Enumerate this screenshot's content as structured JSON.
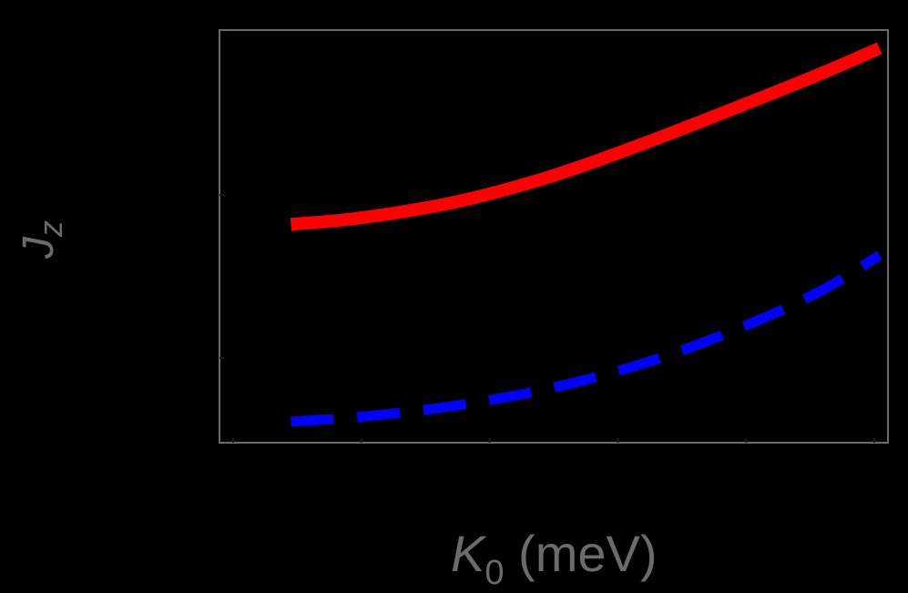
{
  "chart_data": {
    "type": "line",
    "title": "",
    "xlabel": "K0 (meV)",
    "ylabel": "Jz",
    "xlabel_parts": {
      "main": "K",
      "sub": "0",
      "rest": " (meV)"
    },
    "ylabel_parts": {
      "main": "J",
      "sub": "z"
    },
    "x_ticks_count": 6,
    "x_tick_labels": [],
    "y_tick_labels": [],
    "xlim": [
      -0.1,
      5.1
    ],
    "ylim": [
      0.5,
      3.0
    ],
    "grid": false,
    "legend": null,
    "note": "Axes have no visible tick labels; values expressed in tick-spacing units",
    "series": [
      {
        "name": "solid red",
        "color": "#ff0000",
        "style": "solid",
        "x": [
          0.45,
          1.0,
          1.75,
          2.5,
          3.25,
          4.0,
          4.6,
          5.04
        ],
        "y": [
          1.82,
          1.86,
          1.96,
          2.12,
          2.33,
          2.56,
          2.75,
          2.9
        ]
      },
      {
        "name": "dashed blue",
        "color": "#0000ff",
        "style": "dashed",
        "x": [
          0.45,
          1.0,
          1.75,
          2.5,
          3.25,
          4.0,
          4.6,
          5.04
        ],
        "y": [
          0.61,
          0.64,
          0.71,
          0.82,
          0.98,
          1.2,
          1.42,
          1.63
        ]
      }
    ]
  },
  "colors": {
    "background": "#000000",
    "frame": "#6b6b6b",
    "label": "#6b6b6b"
  }
}
